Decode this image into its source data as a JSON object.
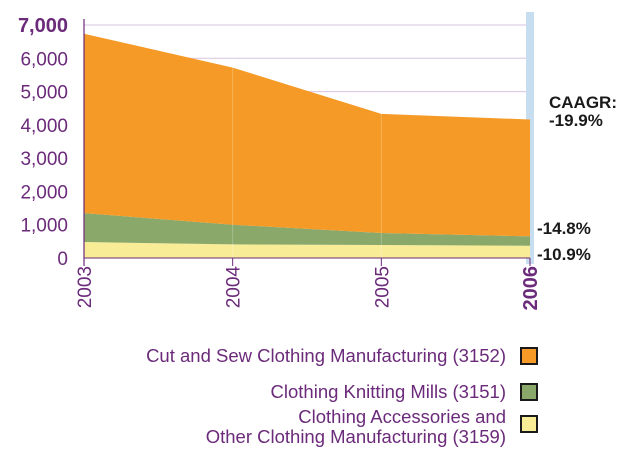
{
  "chart_data": {
    "type": "area",
    "stacked": true,
    "x": [
      "2003",
      "2004",
      "2005",
      "2006"
    ],
    "ylim": [
      0,
      7000
    ],
    "yticks": [
      "0",
      "1,000",
      "2,000",
      "3,000",
      "4,000",
      "5,000",
      "6,000",
      "7,000"
    ],
    "grid": true,
    "series": [
      {
        "name": "Clothing Accessories and Other Clothing Manufacturing (3159)",
        "legend_lines": [
          "Clothing Accessories and",
          "Other Clothing Manufacturing (3159)"
        ],
        "values": [
          480,
          410,
          390,
          370
        ],
        "color": "#f9ec96",
        "annotation": "-10.9%"
      },
      {
        "name": "Clothing Knitting Mills (3151)",
        "legend_lines": [
          "Clothing Knitting Mills (3151)"
        ],
        "values": [
          870,
          590,
          360,
          280
        ],
        "color": "#8aa86a",
        "annotation": "-14.8%"
      },
      {
        "name": "Cut and Sew Clothing Manufacturing (3152)",
        "legend_lines": [
          "Cut and Sew Clothing Manufacturing (3152)"
        ],
        "values": [
          5390,
          4720,
          3580,
          3510
        ],
        "color": "#f59a26",
        "annotation_lines": [
          "CAAGR:",
          "-19.9%"
        ]
      }
    ],
    "highlight_year": "2006",
    "legend_placement": "bottom-right"
  }
}
